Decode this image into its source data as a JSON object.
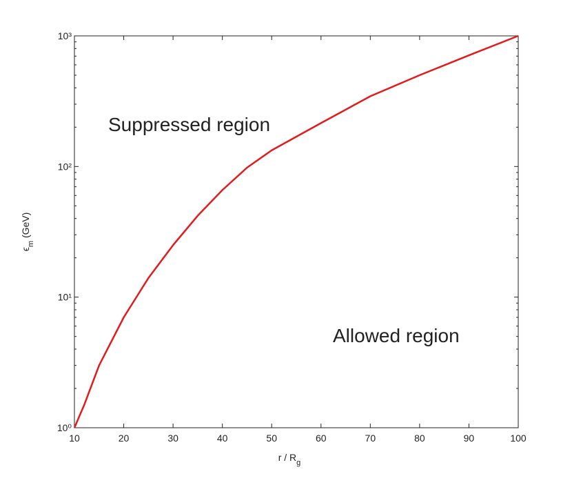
{
  "chart_data": {
    "type": "line",
    "x_label": [
      "r / R",
      "g"
    ],
    "y_label": [
      "ϵ",
      "m",
      " (GeV)"
    ],
    "annotations": [
      "Suppressed region",
      "Allowed region"
    ],
    "x": [
      10,
      12,
      15,
      20,
      25,
      30,
      35,
      40,
      45,
      50,
      60,
      70,
      80,
      90,
      100
    ],
    "series": [
      {
        "color": "#e41a1c",
        "values": [
          1,
          1.5,
          3,
          7,
          14,
          25,
          42,
          66,
          98,
          133,
          215,
          345,
          500,
          710,
          1000
        ]
      }
    ],
    "xlim": [
      10,
      100
    ],
    "xticks": [
      10,
      20,
      30,
      40,
      50,
      60,
      70,
      80,
      90,
      100
    ],
    "ylim": [
      1,
      1000
    ],
    "yticks": [
      {
        "value": 1,
        "label": "10⁰"
      },
      {
        "value": 10,
        "label": "10¹"
      },
      {
        "value": 100,
        "label": "10²"
      },
      {
        "value": 1000,
        "label": "10³"
      }
    ],
    "y_log": true,
    "minor_ticks": true,
    "grid": false
  }
}
